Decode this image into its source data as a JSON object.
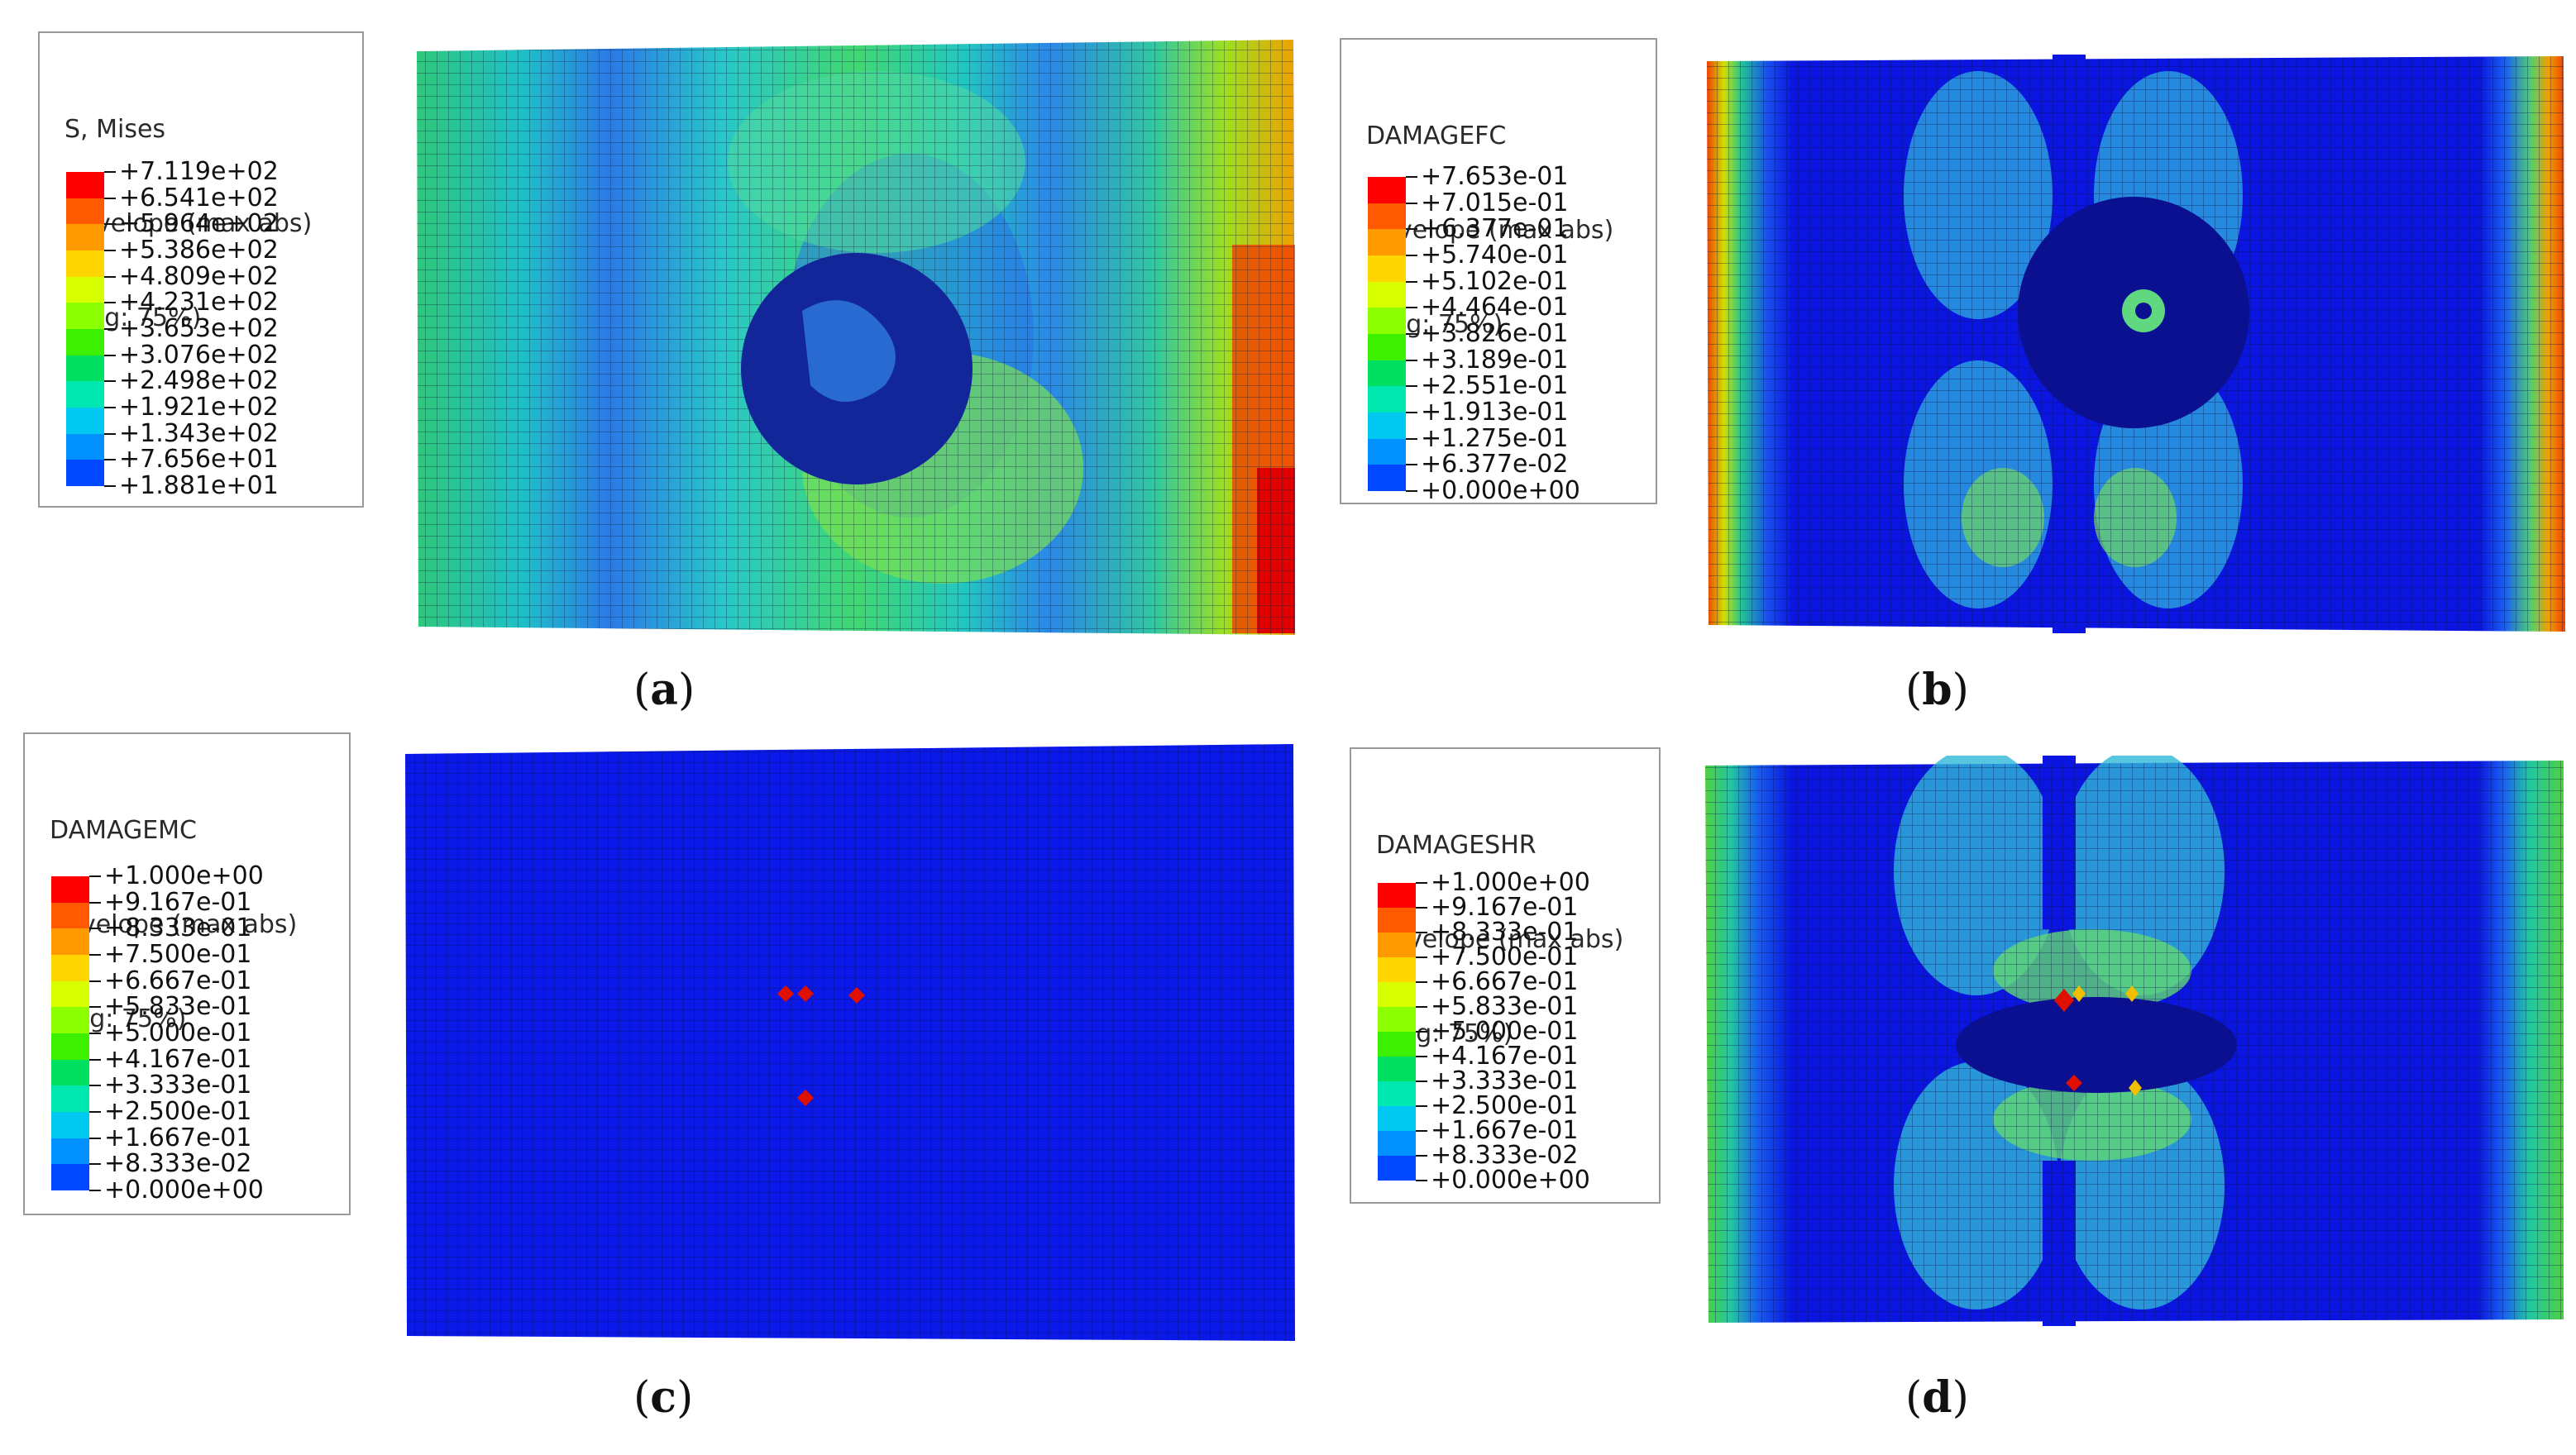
{
  "panels": [
    {
      "id": "a",
      "legend_title": [
        "S, Mises",
        "Envelope (max abs)",
        "(Avg: 75%)"
      ],
      "legend_values": [
        "+7.119e+02",
        "+6.541e+02",
        "+5.964e+02",
        "+5.386e+02",
        "+4.809e+02",
        "+4.231e+02",
        "+3.653e+02",
        "+3.076e+02",
        "+2.498e+02",
        "+1.921e+02",
        "+1.343e+02",
        "+7.656e+01",
        "+1.881e+01"
      ],
      "caption": "a"
    },
    {
      "id": "b",
      "legend_title": [
        "DAMAGEFC",
        "Envelope (max abs)",
        "(Avg: 75%)"
      ],
      "legend_values": [
        "+7.653e-01",
        "+7.015e-01",
        "+6.377e-01",
        "+5.740e-01",
        "+5.102e-01",
        "+4.464e-01",
        "+3.826e-01",
        "+3.189e-01",
        "+2.551e-01",
        "+1.913e-01",
        "+1.275e-01",
        "+6.377e-02",
        "+0.000e+00"
      ],
      "caption": "b"
    },
    {
      "id": "c",
      "legend_title": [
        "DAMAGEMC",
        "Envelope (max abs)",
        "(Avg: 75%)"
      ],
      "legend_values": [
        "+1.000e+00",
        "+9.167e-01",
        "+8.333e-01",
        "+7.500e-01",
        "+6.667e-01",
        "+5.833e-01",
        "+5.000e-01",
        "+4.167e-01",
        "+3.333e-01",
        "+2.500e-01",
        "+1.667e-01",
        "+8.333e-02",
        "+0.000e+00"
      ],
      "caption": "c"
    },
    {
      "id": "d",
      "legend_title": [
        "DAMAGESHR",
        "Envelope (max abs)",
        "(Avg: 75%)"
      ],
      "legend_values": [
        "+1.000e+00",
        "+9.167e-01",
        "+8.333e-01",
        "+7.500e-01",
        "+6.667e-01",
        "+5.833e-01",
        "+5.000e-01",
        "+4.167e-01",
        "+3.333e-01",
        "+2.500e-01",
        "+1.667e-01",
        "+8.333e-02",
        "+0.000e+00"
      ],
      "caption": "d"
    }
  ],
  "colormap": [
    "#ff0000",
    "#ff5a00",
    "#ff9a00",
    "#ffd600",
    "#d8ff00",
    "#8cff00",
    "#3cf000",
    "#00e060",
    "#00e8b0",
    "#00c8f0",
    "#0090ff",
    "#0048ff",
    "#0000e8"
  ]
}
